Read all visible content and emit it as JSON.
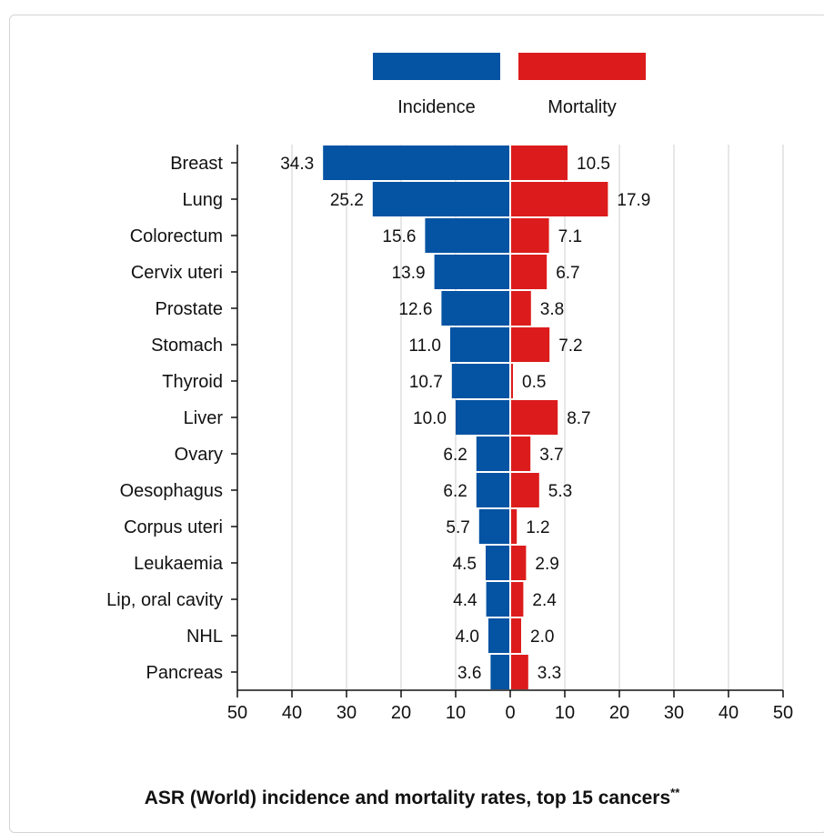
{
  "chart_data": {
    "type": "bar",
    "orientation": "horizontal-diverging",
    "title": "ASR (World) incidence and mortality rates, top 15 cancers",
    "title_note": "**",
    "categories": [
      "Breast",
      "Lung",
      "Colorectum",
      "Cervix uteri",
      "Prostate",
      "Stomach",
      "Thyroid",
      "Liver",
      "Ovary",
      "Oesophagus",
      "Corpus uteri",
      "Leukaemia",
      "Lip, oral cavity",
      "NHL",
      "Pancreas"
    ],
    "series": [
      {
        "name": "Incidence",
        "color": "#0553a3",
        "side": "left",
        "values": [
          34.3,
          25.2,
          15.6,
          13.9,
          12.6,
          11.0,
          10.7,
          10.0,
          6.2,
          6.2,
          5.7,
          4.5,
          4.4,
          4.0,
          3.6
        ],
        "labels": [
          "34.3",
          "25.2",
          "15.6",
          "13.9",
          "12.6",
          "11.0",
          "10.7",
          "10.0",
          "6.2",
          "6.2",
          "5.7",
          "4.5",
          "4.4",
          "4.0",
          "3.6"
        ]
      },
      {
        "name": "Mortality",
        "color": "#dc1c1c",
        "side": "right",
        "values": [
          10.5,
          17.9,
          7.1,
          6.7,
          3.8,
          7.2,
          0.5,
          8.7,
          3.7,
          5.3,
          1.2,
          2.9,
          2.4,
          2.0,
          3.3
        ],
        "labels": [
          "10.5",
          "17.9",
          "7.1",
          "6.7",
          "3.8",
          "7.2",
          "0.5",
          "8.7",
          "3.7",
          "5.3",
          "1.2",
          "2.9",
          "2.4",
          "2.0",
          "3.3"
        ]
      }
    ],
    "xlim": [
      -50,
      50
    ],
    "x_ticks": [
      "50",
      "40",
      "30",
      "20",
      "10",
      "0",
      "10",
      "20",
      "30",
      "40",
      "50"
    ],
    "grid": true,
    "legend_position": "top-center"
  }
}
